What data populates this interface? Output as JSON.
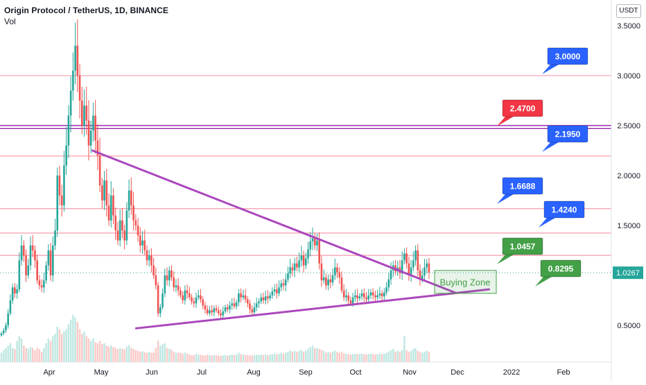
{
  "header": {
    "title": "Origin Protocol / TetherUS, 1D, BINANCE",
    "indicator": "Vol"
  },
  "currency_button": "USDT",
  "colors": {
    "up": "#26a69a",
    "down": "#ef5350",
    "trendline": "#ab47bc",
    "resistance": "#f8a5b4",
    "key_level": "#9c27b0",
    "label_blue": "#2962ff",
    "label_red": "#f23645",
    "label_green": "#43a047",
    "buying_zone": "#43a047",
    "last_price": "#26a69a"
  },
  "chart_data": {
    "type": "candlestick",
    "symbol": "OGN/USDT",
    "interval": "1D",
    "y_axis": {
      "ticks": [
        "3.5000",
        "3.0000",
        "2.5000",
        "2.0000",
        "1.5000",
        "0.5000"
      ],
      "tick_values": [
        3.5,
        3.0,
        2.5,
        2.0,
        1.5,
        0.5
      ],
      "ylim": [
        0.05,
        3.6
      ]
    },
    "x_axis": {
      "labels": [
        "Apr",
        "May",
        "Jun",
        "Jul",
        "Aug",
        "Sep",
        "Oct",
        "Nov",
        "Dec",
        "2022",
        "Feb"
      ]
    },
    "last_price": {
      "value": 1.0267,
      "label": "1.0267"
    },
    "horizontal_levels": [
      {
        "value": 3.0,
        "style": "resistance"
      },
      {
        "value": 2.5,
        "style": "key_level"
      },
      {
        "value": 2.47,
        "style": "key_level"
      },
      {
        "value": 2.195,
        "style": "resistance"
      },
      {
        "value": 1.6688,
        "style": "resistance"
      },
      {
        "value": 1.424,
        "style": "resistance"
      },
      {
        "value": 1.2,
        "style": "resistance"
      }
    ],
    "level_labels": [
      {
        "text": "3.0000",
        "value": 3.0,
        "color": "blue"
      },
      {
        "text": "2.4700",
        "value": 2.47,
        "color": "red"
      },
      {
        "text": "2.1950",
        "value": 2.195,
        "color": "blue"
      },
      {
        "text": "1.6688",
        "value": 1.6688,
        "color": "blue"
      },
      {
        "text": "1.4240",
        "value": 1.424,
        "color": "blue"
      },
      {
        "text": "1.0457",
        "value": 1.0457,
        "color": "green"
      },
      {
        "text": "0.8295",
        "value": 0.8295,
        "color": "green"
      }
    ],
    "annotations": [
      {
        "text": "Buying Zone",
        "price_from": 0.82,
        "price_to": 1.05
      }
    ],
    "trendlines": [
      {
        "name": "descending",
        "from": {
          "date": "2021-04-27",
          "price": 2.25
        },
        "to": {
          "date": "2021-11-28",
          "price": 0.83
        }
      },
      {
        "name": "ascending",
        "from": {
          "date": "2021-05-22",
          "price": 0.47
        },
        "to": {
          "date": "2021-12-20",
          "price": 0.86
        }
      }
    ],
    "ohlc_close": [
      0.42,
      0.45,
      0.5,
      0.62,
      0.75,
      0.88,
      0.82,
      0.86,
      1.15,
      1.3,
      1.2,
      1.0,
      1.1,
      1.3,
      1.25,
      1.15,
      0.95,
      0.9,
      0.88,
      0.95,
      1.1,
      1.25,
      1.0,
      1.3,
      1.45,
      2.0,
      1.8,
      1.7,
      2.1,
      2.3,
      2.6,
      2.85,
      3.05,
      3.3,
      3.0,
      2.75,
      2.5,
      2.7,
      2.55,
      2.3,
      2.45,
      2.6,
      2.35,
      2.2,
      1.9,
      1.75,
      1.95,
      1.7,
      1.55,
      1.8,
      1.6,
      1.45,
      1.35,
      1.55,
      1.45,
      1.35,
      1.65,
      1.85,
      1.7,
      1.55,
      1.5,
      1.4,
      1.3,
      1.35,
      1.25,
      1.15,
      1.2,
      1.1,
      1.0,
      0.9,
      0.62,
      0.68,
      0.82,
      1.0,
      0.95,
      1.05,
      0.98,
      0.88,
      0.9,
      0.85,
      0.8,
      0.75,
      0.85,
      0.82,
      0.78,
      0.74,
      0.72,
      0.78,
      0.8,
      0.76,
      0.7,
      0.66,
      0.62,
      0.65,
      0.63,
      0.67,
      0.65,
      0.62,
      0.6,
      0.64,
      0.68,
      0.66,
      0.7,
      0.72,
      0.69,
      0.73,
      0.82,
      0.78,
      0.8,
      0.76,
      0.72,
      0.66,
      0.63,
      0.68,
      0.72,
      0.74,
      0.78,
      0.75,
      0.79,
      0.77,
      0.8,
      0.84,
      0.86,
      0.82,
      0.88,
      0.92,
      0.9,
      0.96,
      1.02,
      1.08,
      1.05,
      1.12,
      1.08,
      1.15,
      1.2,
      1.1,
      1.17,
      1.26,
      1.34,
      1.37,
      1.3,
      1.35,
      1.12,
      0.95,
      0.98,
      0.9,
      0.96,
      0.93,
      1.0,
      1.08,
      1.03,
      0.98,
      0.85,
      0.78,
      0.8,
      0.75,
      0.72,
      0.78,
      0.8,
      0.77,
      0.79,
      0.82,
      0.78,
      0.76,
      0.8,
      0.83,
      0.8,
      0.78,
      0.8,
      0.82,
      0.79,
      0.83,
      0.88,
      0.96,
      1.05,
      1.1,
      1.04,
      1.08,
      1.02,
      1.15,
      1.22,
      1.12,
      1.0,
      1.08,
      1.15,
      1.25,
      1.05,
      0.96,
      1.0,
      1.08,
      1.12,
      1.03
    ],
    "volume_rel": [
      0.2,
      0.25,
      0.3,
      0.35,
      0.4,
      0.3,
      0.28,
      0.45,
      0.55,
      0.5,
      0.35,
      0.3,
      0.28,
      0.32,
      0.3,
      0.25,
      0.3,
      0.28,
      0.22,
      0.3,
      0.4,
      0.5,
      0.45,
      0.55,
      0.6,
      0.75,
      0.7,
      0.6,
      0.65,
      0.7,
      0.8,
      0.9,
      1.0,
      0.95,
      0.85,
      0.7,
      0.6,
      0.65,
      0.55,
      0.5,
      0.45,
      0.5,
      0.42,
      0.4,
      0.45,
      0.38,
      0.4,
      0.35,
      0.33,
      0.36,
      0.32,
      0.3,
      0.28,
      0.3,
      0.28,
      0.27,
      0.33,
      0.36,
      0.3,
      0.28,
      0.25,
      0.24,
      0.22,
      0.23,
      0.21,
      0.2,
      0.22,
      0.2,
      0.2,
      0.3,
      0.45,
      0.35,
      0.38,
      0.4,
      0.3,
      0.28,
      0.26,
      0.22,
      0.2,
      0.2,
      0.2,
      0.18,
      0.2,
      0.18,
      0.16,
      0.15,
      0.15,
      0.17,
      0.16,
      0.15,
      0.15,
      0.14,
      0.16,
      0.15,
      0.14,
      0.15,
      0.14,
      0.14,
      0.13,
      0.14,
      0.15,
      0.14,
      0.15,
      0.16,
      0.15,
      0.16,
      0.2,
      0.17,
      0.16,
      0.15,
      0.15,
      0.14,
      0.14,
      0.15,
      0.16,
      0.15,
      0.16,
      0.15,
      0.16,
      0.15,
      0.16,
      0.17,
      0.18,
      0.16,
      0.18,
      0.2,
      0.18,
      0.2,
      0.22,
      0.24,
      0.22,
      0.24,
      0.22,
      0.24,
      0.26,
      0.22,
      0.24,
      0.28,
      0.32,
      0.35,
      0.3,
      0.3,
      0.28,
      0.26,
      0.24,
      0.2,
      0.22,
      0.2,
      0.22,
      0.24,
      0.22,
      0.2,
      0.22,
      0.18,
      0.18,
      0.17,
      0.16,
      0.17,
      0.18,
      0.17,
      0.17,
      0.18,
      0.17,
      0.16,
      0.17,
      0.18,
      0.17,
      0.16,
      0.17,
      0.18,
      0.17,
      0.18,
      0.2,
      0.22,
      0.25,
      0.28,
      0.22,
      0.24,
      0.22,
      0.26,
      0.55,
      0.25,
      0.22,
      0.24,
      0.28,
      0.3,
      0.24,
      0.22,
      0.2,
      0.22,
      0.24,
      0.22
    ]
  }
}
